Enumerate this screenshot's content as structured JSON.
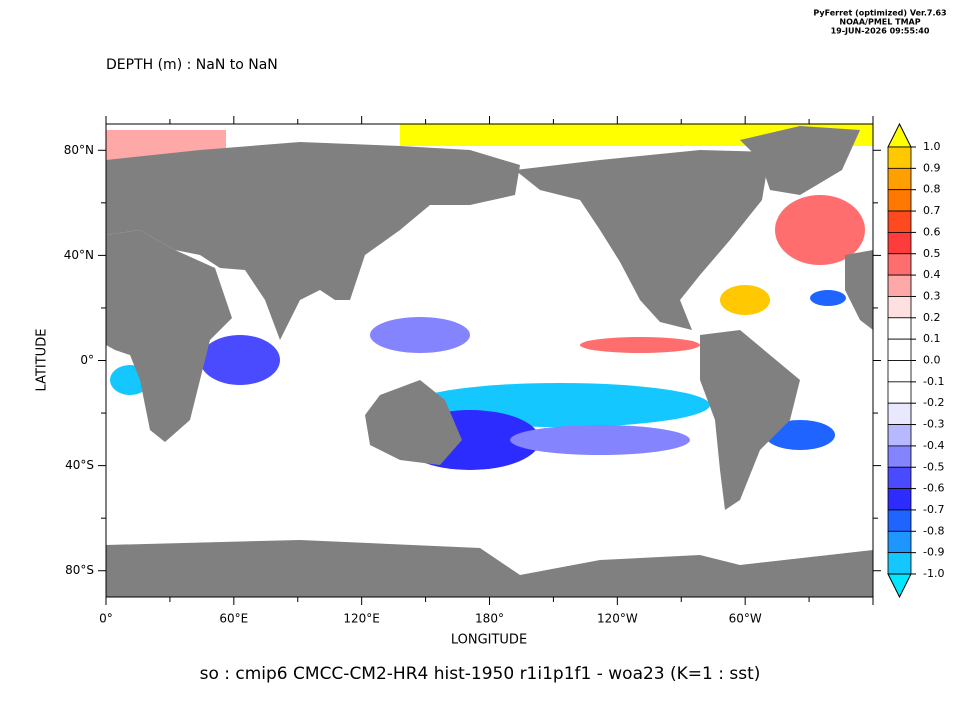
{
  "header": {
    "program": "PyFerret (optimized) Ver.7.63",
    "organization": "NOAA/PMEL TMAP",
    "timestamp": "19-JUN-2026 09:55:40"
  },
  "title": "DEPTH (m) : NaN to NaN",
  "caption": "so : cmip6 CMCC-CM2-HR4 hist-1950 r1i1p1f1 - woa23  (K=1 : sst)",
  "x_axis": {
    "label": "LONGITUDE",
    "tick_labels": [
      "0°",
      "60°E",
      "120°E",
      "180°",
      "120°W",
      "60°W"
    ]
  },
  "y_axis": {
    "label": "LATITUDE",
    "tick_labels": [
      "80°N",
      "40°N",
      "0°",
      "40°S",
      "80°S"
    ]
  },
  "colorbar": {
    "labels": [
      "1.0",
      "0.9",
      "0.8",
      "0.7",
      "0.6",
      "0.5",
      "0.4",
      "0.3",
      "0.2",
      "0.1",
      "0.0",
      "-0.1",
      "-0.2",
      "-0.3",
      "-0.4",
      "-0.5",
      "-0.6",
      "-0.7",
      "-0.8",
      "-0.9",
      "-1.0"
    ],
    "colors": [
      "#ffff00",
      "#ffc800",
      "#ffa000",
      "#ff7800",
      "#ff4a20",
      "#ff3c3c",
      "#ff6e6e",
      "#ffa8a8",
      "#ffe0e0",
      "#ffffff",
      "#ffffff",
      "#ffffff",
      "#ffffff",
      "#e8e8ff",
      "#b8b8ff",
      "#8484ff",
      "#4a4aff",
      "#2c2cff",
      "#2064ff",
      "#1e96ff",
      "#14c8ff",
      "#00e8ff"
    ]
  }
}
